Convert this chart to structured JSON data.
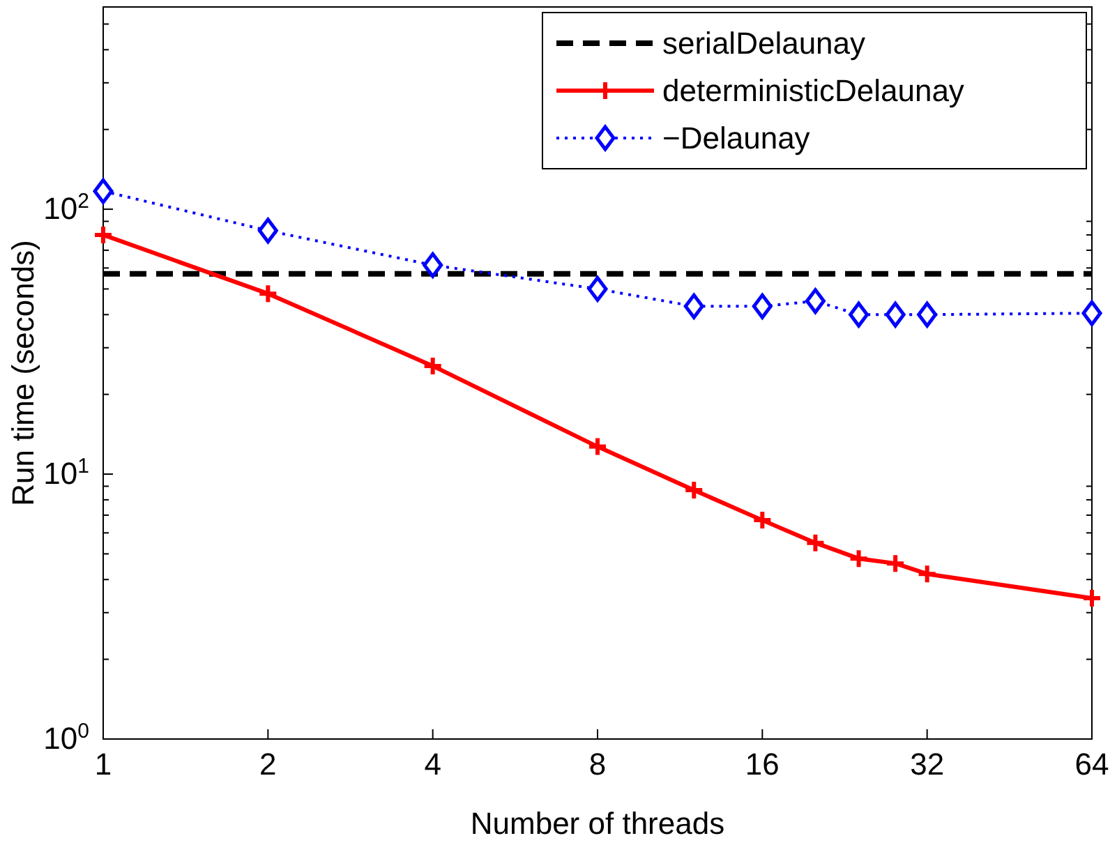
{
  "chart_data": {
    "type": "line",
    "xlabel": "Number of threads",
    "ylabel": "Run time (seconds)",
    "log": "xy",
    "xlim": [
      1,
      64
    ],
    "ylim": [
      1,
      580
    ],
    "xticks": [
      1,
      2,
      4,
      8,
      16,
      32,
      64
    ],
    "yticks": [
      {
        "value": 1,
        "label": "10$^{0}$"
      },
      {
        "value": 10,
        "label": "10$^{1}$"
      },
      {
        "value": 100,
        "label": "10$^{2}$"
      }
    ],
    "grid": false,
    "legend": "top right",
    "series": [
      {
        "name": "serialDelaunay",
        "color": "#000000",
        "x": [
          1,
          64
        ],
        "values": [
          57,
          57
        ],
        "marker": "none",
        "line_style": "dashed"
      },
      {
        "name": "deterministicDelaunay",
        "color": "#ff0000",
        "x": [
          1,
          2,
          4,
          8,
          12,
          16,
          20,
          24,
          28,
          32,
          64
        ],
        "values": [
          80,
          48,
          25.6,
          12.7,
          8.7,
          6.7,
          5.5,
          4.8,
          4.6,
          4.2,
          3.4
        ],
        "marker": "cross",
        "line_style": "solid"
      },
      {
        "name": "−Delaunay",
        "color": "#0000ff",
        "x": [
          1,
          2,
          4,
          8,
          12,
          16,
          20,
          24,
          28,
          32,
          64
        ],
        "values": [
          117,
          83,
          61.5,
          50,
          43,
          43,
          45,
          40,
          40,
          40,
          40.5
        ],
        "marker": "diamond",
        "line_style": "dotted"
      }
    ]
  }
}
